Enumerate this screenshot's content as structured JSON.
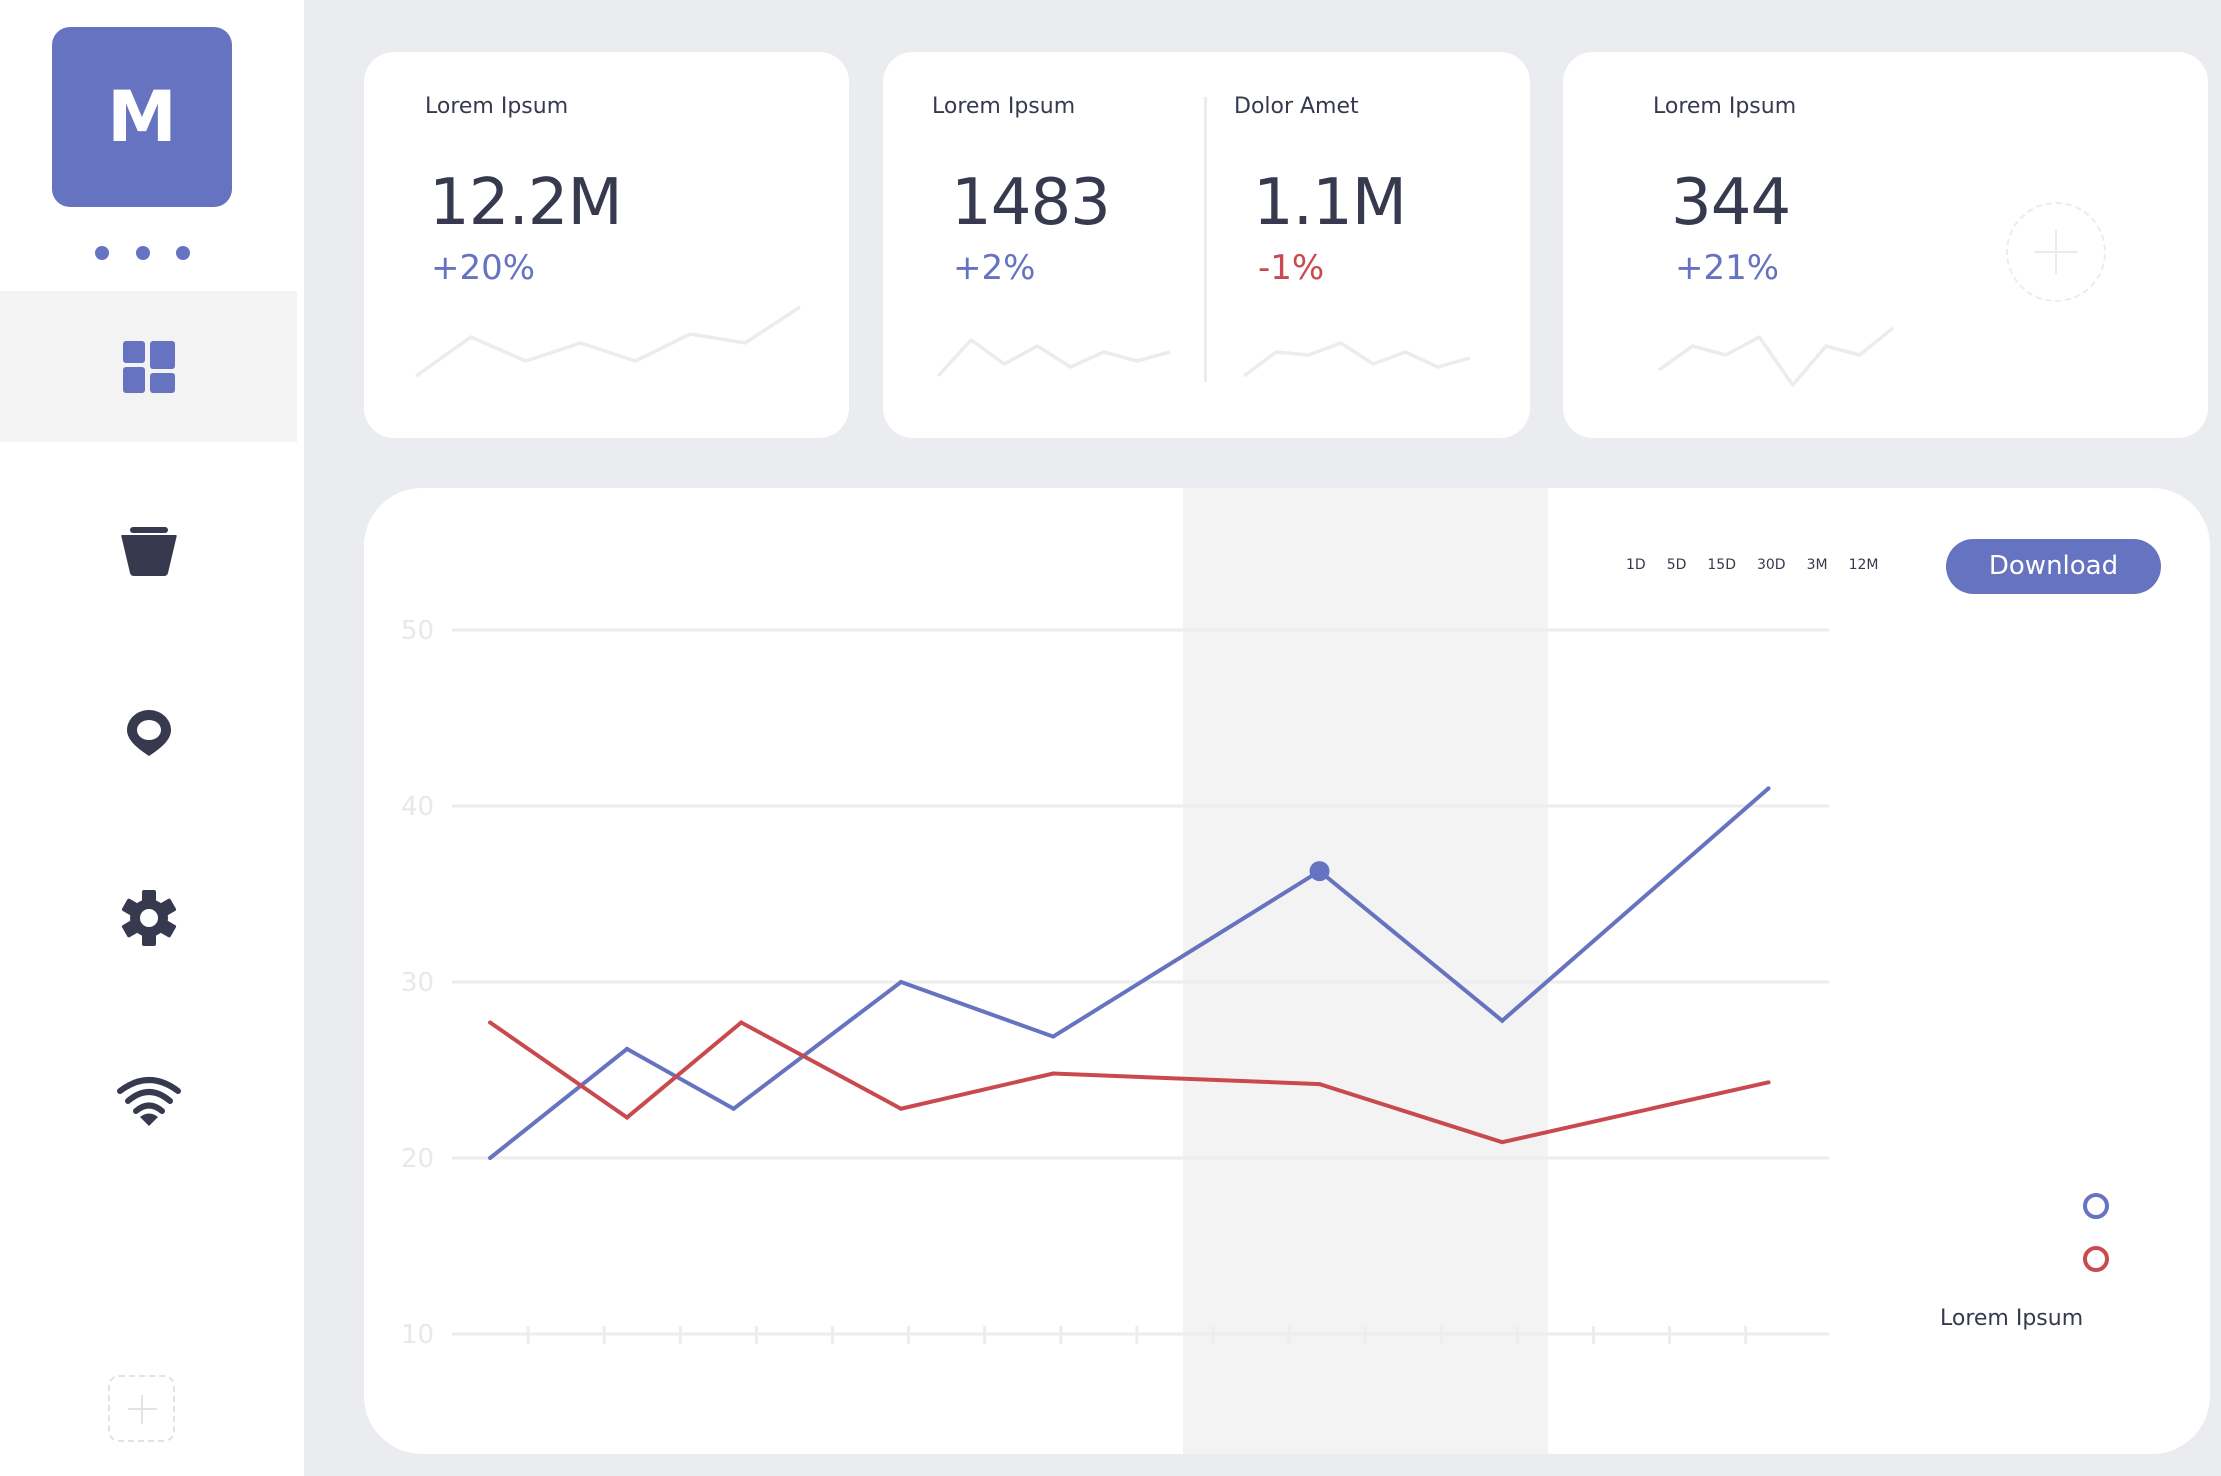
{
  "sidebar": {
    "logo_letter": "M",
    "items": [
      {
        "name": "dashboard",
        "icon": "dashboard-grid-icon",
        "active": true
      },
      {
        "name": "basket",
        "icon": "basket-icon",
        "active": false
      },
      {
        "name": "location",
        "icon": "location-pin-icon",
        "active": false
      },
      {
        "name": "settings",
        "icon": "gear-icon",
        "active": false
      },
      {
        "name": "wifi",
        "icon": "wifi-icon",
        "active": false
      }
    ],
    "add_icon": "plus-icon"
  },
  "colors": {
    "accent": "#6573c0",
    "negative": "#c94a4e",
    "text": "#373a4f",
    "sparkline": "#ececee",
    "grid": "#ededef",
    "band": "#f3f3f4",
    "background": "#ebecf0"
  },
  "stats": [
    {
      "label": "Lorem Ipsum",
      "value": "12.2M",
      "change": "+20%",
      "trend": "positive",
      "sparkline": [
        3,
        16,
        8,
        14,
        8,
        17,
        14,
        26
      ]
    },
    {
      "label": "Lorem Ipsum",
      "value": "1483",
      "change": "+2%",
      "trend": "positive",
      "sparkline": [
        3,
        15,
        7,
        13,
        6,
        11,
        8,
        11
      ]
    },
    {
      "label": "Dolor Amet",
      "value": "1.1M",
      "change": "-1%",
      "trend": "negative",
      "sparkline": [
        3,
        11,
        10,
        14,
        7,
        11,
        6,
        9
      ]
    },
    {
      "label": "Lorem Ipsum",
      "value": "344",
      "change": "+21%",
      "trend": "positive",
      "sparkline": [
        5,
        13,
        10,
        16,
        0,
        13,
        10,
        19
      ]
    }
  ],
  "chart_controls": {
    "ranges": [
      "1D",
      "5D",
      "15D",
      "30D",
      "3M",
      "12M"
    ],
    "download_label": "Download"
  },
  "chart_data": {
    "type": "line",
    "title": "",
    "xlabel": "",
    "ylabel": "",
    "ylim": [
      10,
      50
    ],
    "yticks": [
      "10",
      "20",
      "30",
      "40",
      "50"
    ],
    "xlim": [
      0,
      18.1
    ],
    "x_ticks_count": 17,
    "grid": true,
    "highlight_range": [
      9.6,
      14.4
    ],
    "highlight_point": {
      "series": 0,
      "index": 5
    },
    "legend": {
      "position": "bottom-right",
      "label": "Lorem Ipsum"
    },
    "series": [
      {
        "name": "series-blue",
        "color": "#6573c0",
        "x": [
          0.5,
          2.3,
          3.7,
          5.9,
          7.9,
          11.4,
          13.8,
          17.3
        ],
        "values": [
          20,
          26.2,
          22.8,
          30,
          26.9,
          36.3,
          27.8,
          41
        ]
      },
      {
        "name": "series-red",
        "color": "#c94a4e",
        "x": [
          0.5,
          2.3,
          3.8,
          5.9,
          7.9,
          11.4,
          13.8,
          17.3
        ],
        "values": [
          27.7,
          22.3,
          27.7,
          22.8,
          24.8,
          24.2,
          20.9,
          24.3
        ]
      }
    ]
  }
}
